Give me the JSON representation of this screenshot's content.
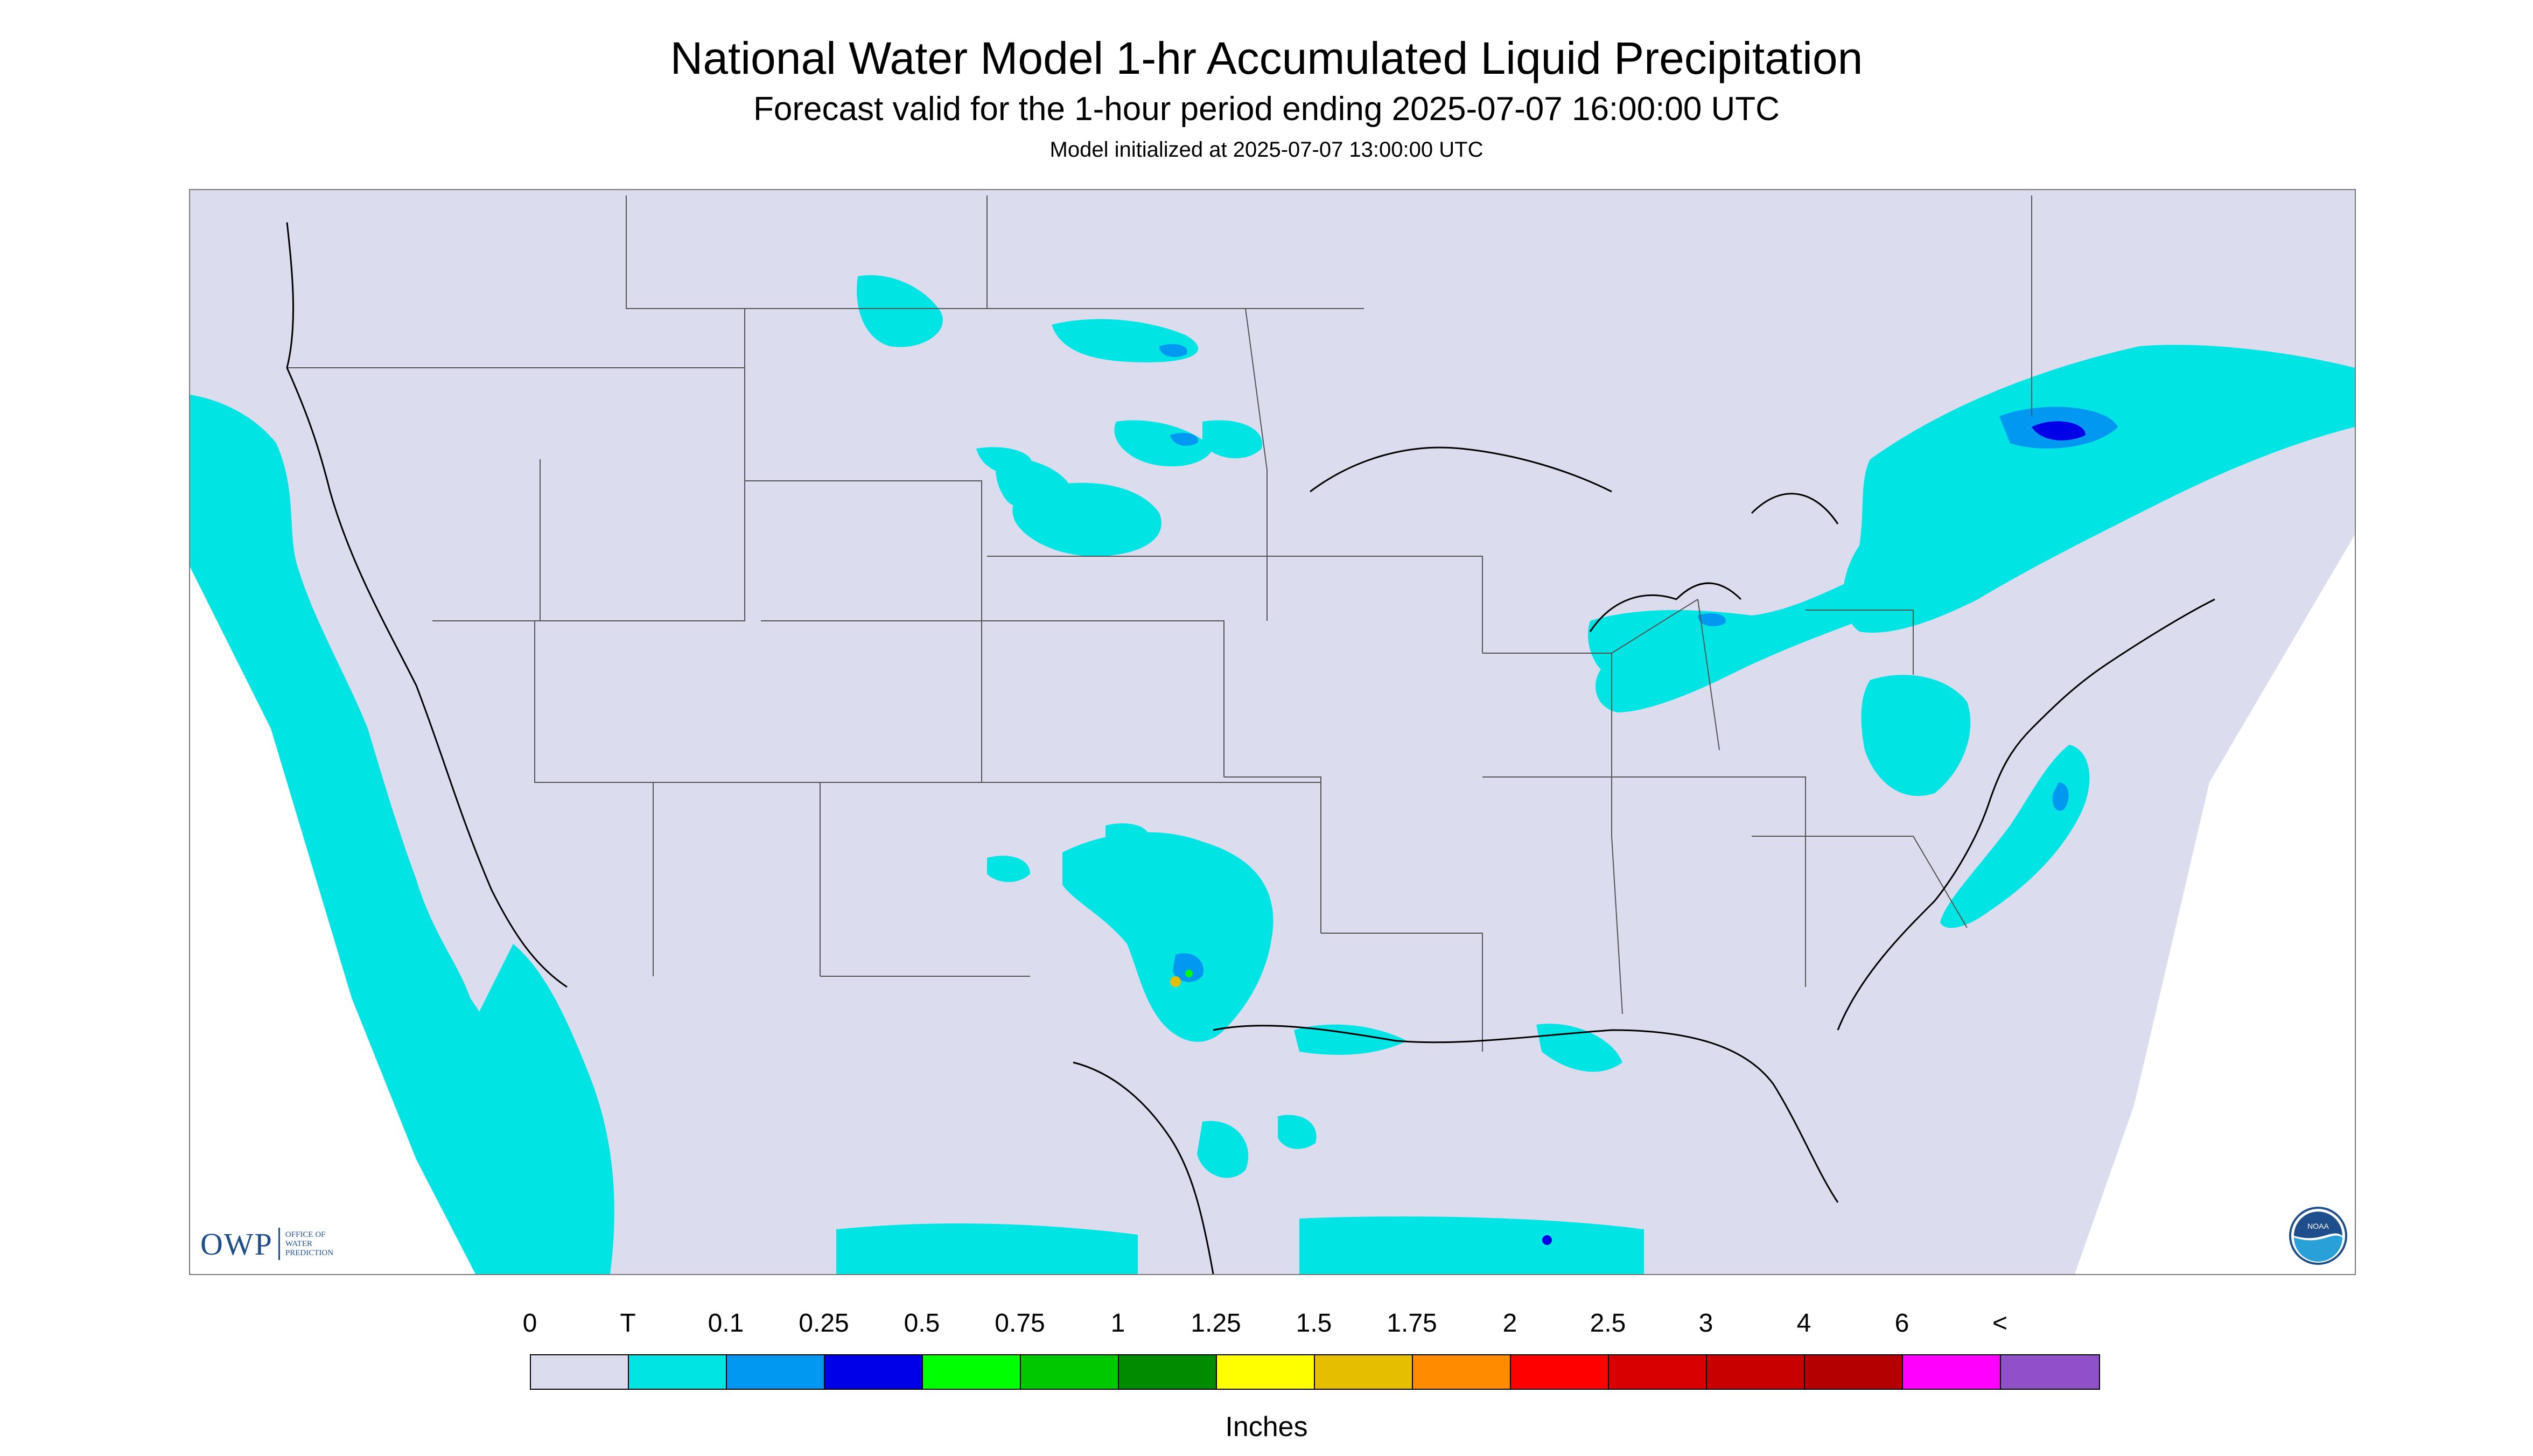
{
  "header": {
    "title": "National Water Model 1-hr Accumulated Liquid Precipitation",
    "subtitle": "Forecast valid for the 1-hour period ending 2025-07-07 16:00:00 UTC",
    "init": "Model initialized at 2025-07-07 13:00:00 UTC"
  },
  "colors": {
    "background": "#dcdcef",
    "land_outline": "#000000",
    "trace": "#00e4e4",
    "light": "#0098f0",
    "moderate": "#0000e8",
    "heavy_green": "#00e000",
    "heavy_yellow": "#ffff00",
    "heavy_orange": "#ff8c00"
  },
  "legend": {
    "labels": [
      "0",
      "T",
      "0.1",
      "0.25",
      "0.5",
      "0.75",
      "1",
      "1.25",
      "1.5",
      "1.75",
      "2",
      "2.5",
      "3",
      "4",
      "6",
      "<"
    ],
    "colors": [
      "#dcdcef",
      "#00e4e4",
      "#0098f0",
      "#0000e8",
      "#00ff00",
      "#00c800",
      "#008c00",
      "#ffff00",
      "#e6be00",
      "#ff8c00",
      "#ff0000",
      "#d80000",
      "#c80000",
      "#b40000",
      "#ff00ff",
      "#9050c8"
    ],
    "units": "Inches"
  },
  "logos": {
    "owp_letters": "OWP",
    "owp_words": [
      "OFFICE OF",
      "WATER",
      "PREDICTION"
    ],
    "noaa": "NOAA"
  }
}
